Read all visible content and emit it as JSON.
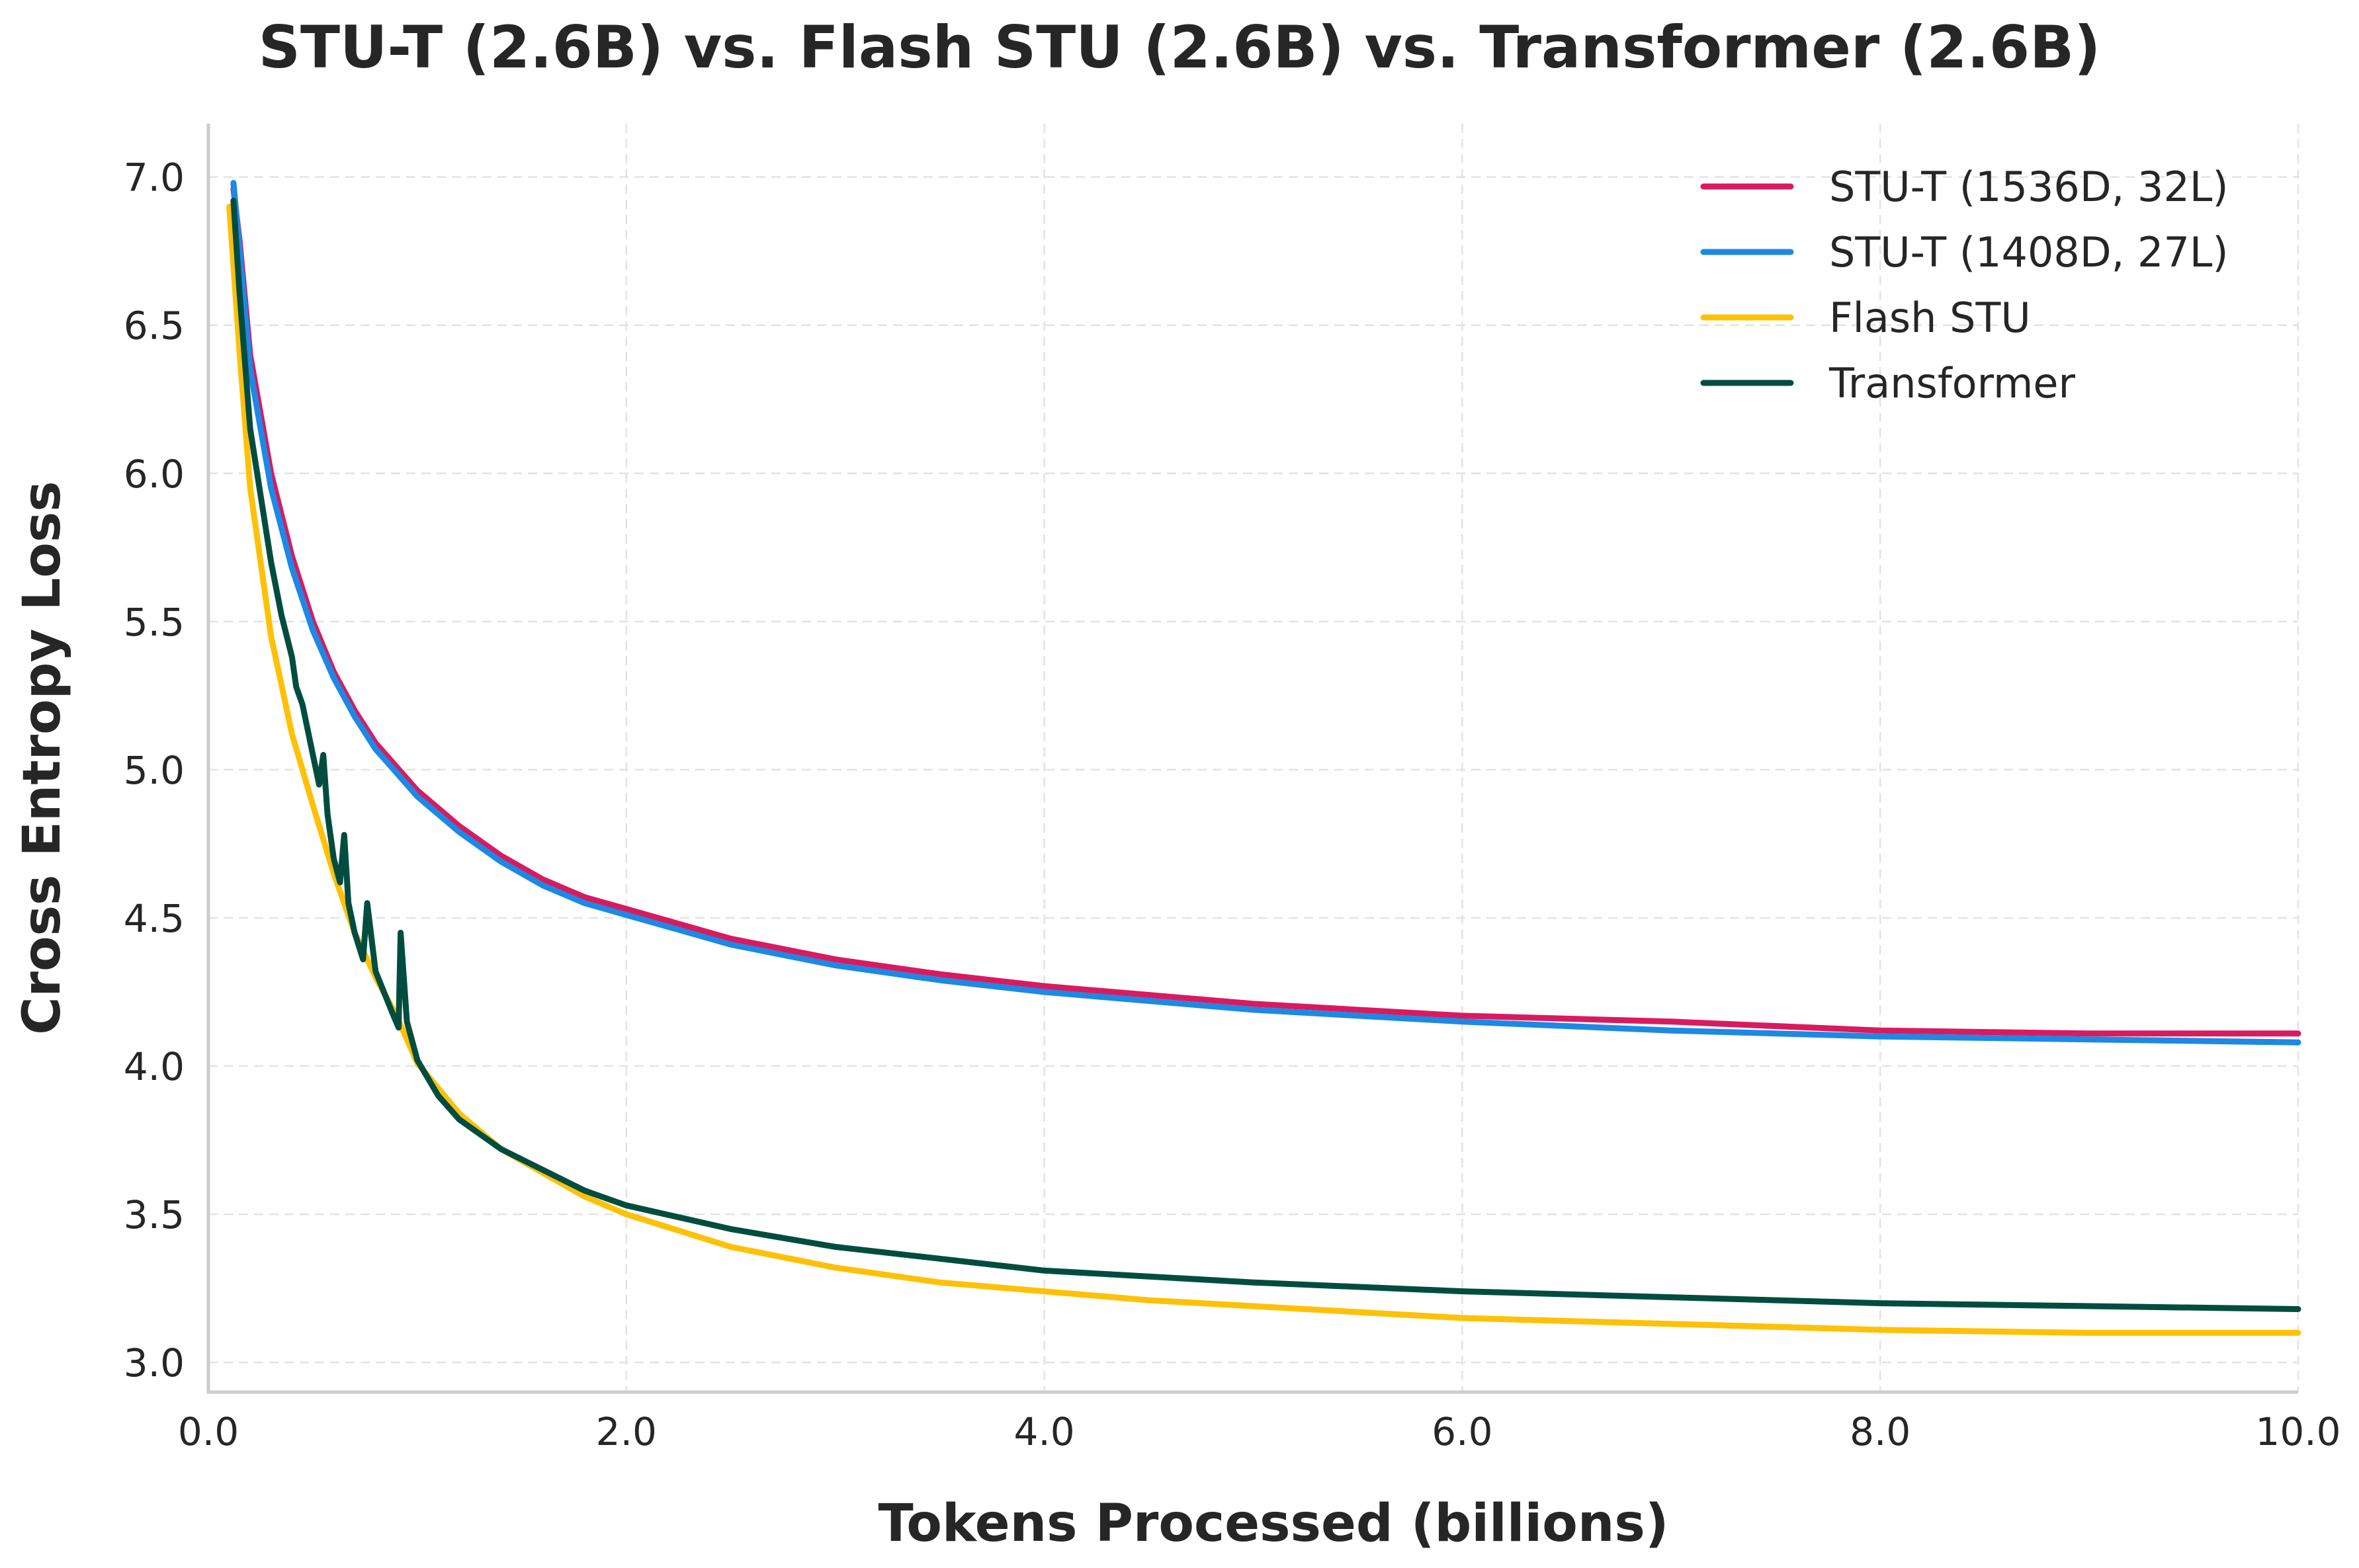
{
  "chart_data": {
    "type": "line",
    "title": "STU-T (2.6B) vs. Flash STU (2.6B) vs. Transformer (2.6B)",
    "xlabel": "Tokens Processed (billions)",
    "ylabel": "Cross Entropy Loss",
    "xlim": [
      0,
      10
    ],
    "ylim": [
      2.9,
      7.18
    ],
    "xticks": [
      0,
      2,
      4,
      6,
      8,
      10
    ],
    "xtick_labels": [
      "0.0",
      "2.0",
      "4.0",
      "6.0",
      "8.0",
      "10.0"
    ],
    "yticks": [
      3.0,
      3.5,
      4.0,
      4.5,
      5.0,
      5.5,
      6.0,
      6.5,
      7.0
    ],
    "ytick_labels": [
      "3.0",
      "3.5",
      "4.0",
      "4.5",
      "5.0",
      "5.5",
      "6.0",
      "6.5",
      "7.0"
    ],
    "grid": true,
    "legend_position": "top-right",
    "series": [
      {
        "name": "STU-T (1536D, 32L)",
        "color": "#D81B60",
        "x": [
          0.12,
          0.15,
          0.2,
          0.3,
          0.4,
          0.5,
          0.6,
          0.7,
          0.8,
          0.9,
          1.0,
          1.2,
          1.4,
          1.6,
          1.8,
          2.0,
          2.5,
          3.0,
          3.5,
          4.0,
          4.5,
          5.0,
          6.0,
          7.0,
          8.0,
          9.0,
          10.0
        ],
        "y": [
          6.96,
          6.78,
          6.4,
          6.0,
          5.72,
          5.5,
          5.33,
          5.2,
          5.09,
          5.01,
          4.93,
          4.81,
          4.71,
          4.63,
          4.57,
          4.53,
          4.43,
          4.36,
          4.31,
          4.27,
          4.24,
          4.21,
          4.17,
          4.15,
          4.12,
          4.11,
          4.11
        ]
      },
      {
        "name": "STU-T (1408D, 27L)",
        "color": "#1E88E5",
        "x": [
          0.12,
          0.15,
          0.2,
          0.3,
          0.4,
          0.5,
          0.6,
          0.7,
          0.8,
          0.9,
          1.0,
          1.2,
          1.4,
          1.6,
          1.8,
          2.0,
          2.5,
          3.0,
          3.5,
          4.0,
          4.5,
          5.0,
          6.0,
          7.0,
          8.0,
          9.0,
          10.0
        ],
        "y": [
          6.98,
          6.75,
          6.35,
          5.95,
          5.68,
          5.47,
          5.31,
          5.18,
          5.07,
          4.99,
          4.91,
          4.79,
          4.69,
          4.61,
          4.55,
          4.51,
          4.41,
          4.34,
          4.29,
          4.25,
          4.22,
          4.19,
          4.15,
          4.12,
          4.1,
          4.09,
          4.08
        ]
      },
      {
        "name": "Flash STU",
        "color": "#FFC107",
        "x": [
          0.1,
          0.15,
          0.2,
          0.3,
          0.4,
          0.5,
          0.6,
          0.7,
          0.8,
          0.9,
          1.0,
          1.2,
          1.4,
          1.6,
          1.8,
          2.0,
          2.5,
          3.0,
          3.5,
          4.0,
          4.5,
          5.0,
          6.0,
          7.0,
          8.0,
          9.0,
          10.0
        ],
        "y": [
          6.9,
          6.4,
          5.95,
          5.45,
          5.12,
          4.88,
          4.65,
          4.45,
          4.3,
          4.17,
          4.01,
          3.84,
          3.72,
          3.64,
          3.56,
          3.5,
          3.39,
          3.32,
          3.27,
          3.24,
          3.21,
          3.19,
          3.15,
          3.13,
          3.11,
          3.1,
          3.1
        ]
      },
      {
        "name": "Transformer",
        "color": "#004D40",
        "x": [
          0.12,
          0.15,
          0.2,
          0.3,
          0.35,
          0.4,
          0.42,
          0.45,
          0.5,
          0.53,
          0.55,
          0.57,
          0.6,
          0.63,
          0.65,
          0.67,
          0.7,
          0.74,
          0.76,
          0.8,
          0.88,
          0.91,
          0.92,
          0.95,
          1.0,
          1.1,
          1.2,
          1.4,
          1.6,
          1.8,
          2.0,
          2.5,
          3.0,
          3.5,
          4.0,
          4.5,
          5.0,
          6.0,
          7.0,
          8.0,
          9.0,
          10.0
        ],
        "y": [
          6.92,
          6.6,
          6.15,
          5.7,
          5.52,
          5.38,
          5.28,
          5.22,
          5.05,
          4.95,
          5.05,
          4.85,
          4.7,
          4.62,
          4.78,
          4.55,
          4.45,
          4.36,
          4.55,
          4.32,
          4.18,
          4.13,
          4.45,
          4.15,
          4.02,
          3.9,
          3.82,
          3.72,
          3.65,
          3.58,
          3.53,
          3.45,
          3.39,
          3.35,
          3.31,
          3.29,
          3.27,
          3.24,
          3.22,
          3.2,
          3.19,
          3.18
        ]
      }
    ]
  }
}
